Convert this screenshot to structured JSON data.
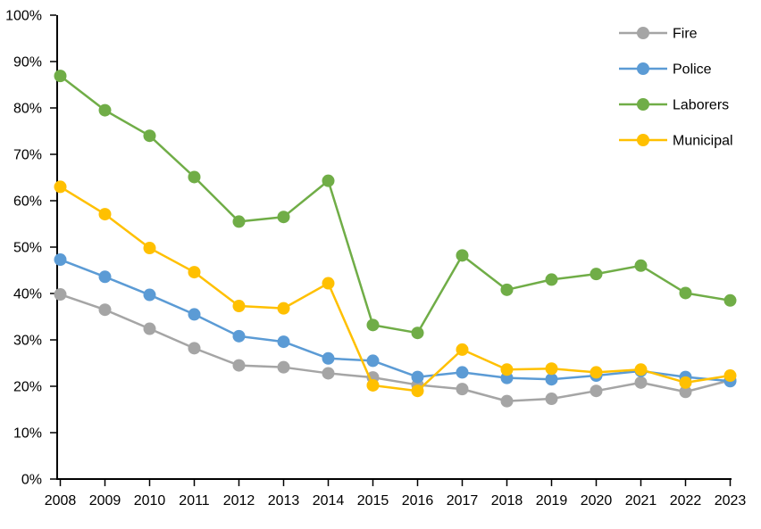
{
  "chart_data": {
    "type": "line",
    "title": "",
    "xlabel": "",
    "ylabel": "",
    "background": "#FFFFFF",
    "axis_color": "#000000",
    "text_color": "#000000",
    "grid": false,
    "legend_position": "top-right",
    "ylim": [
      0,
      100
    ],
    "ytick_step": 10,
    "ytick_labels": [
      "0%",
      "10%",
      "20%",
      "30%",
      "40%",
      "50%",
      "60%",
      "70%",
      "80%",
      "90%",
      "100%"
    ],
    "categories": [
      "2008",
      "2009",
      "2010",
      "2011",
      "2012",
      "2013",
      "2014",
      "2015",
      "2016",
      "2017",
      "2018",
      "2019",
      "2020",
      "2021",
      "2022",
      "2023"
    ],
    "series": [
      {
        "name": "Fire",
        "color": "#A5A5A5",
        "values": [
          39.8,
          36.5,
          32.4,
          28.2,
          24.5,
          24.1,
          22.8,
          21.9,
          20.3,
          19.4,
          16.8,
          17.3,
          19.0,
          20.8,
          18.8,
          21.3
        ]
      },
      {
        "name": "Police",
        "color": "#5B9BD5",
        "values": [
          47.3,
          43.6,
          39.7,
          35.5,
          30.8,
          29.6,
          26.0,
          25.5,
          22.0,
          23.0,
          21.8,
          21.5,
          22.3,
          23.3,
          22.0,
          21.1
        ]
      },
      {
        "name": "Laborers",
        "color": "#70AD47",
        "values": [
          86.9,
          79.5,
          74.0,
          65.1,
          55.5,
          56.5,
          64.3,
          33.2,
          31.5,
          48.2,
          40.8,
          43.0,
          44.2,
          46.0,
          40.1,
          38.5
        ]
      },
      {
        "name": "Municipal",
        "color": "#FFC000",
        "values": [
          63.0,
          57.1,
          49.8,
          44.6,
          37.3,
          36.8,
          42.2,
          20.2,
          19.0,
          27.9,
          23.6,
          23.8,
          23.0,
          23.6,
          20.8,
          22.3
        ]
      }
    ]
  }
}
